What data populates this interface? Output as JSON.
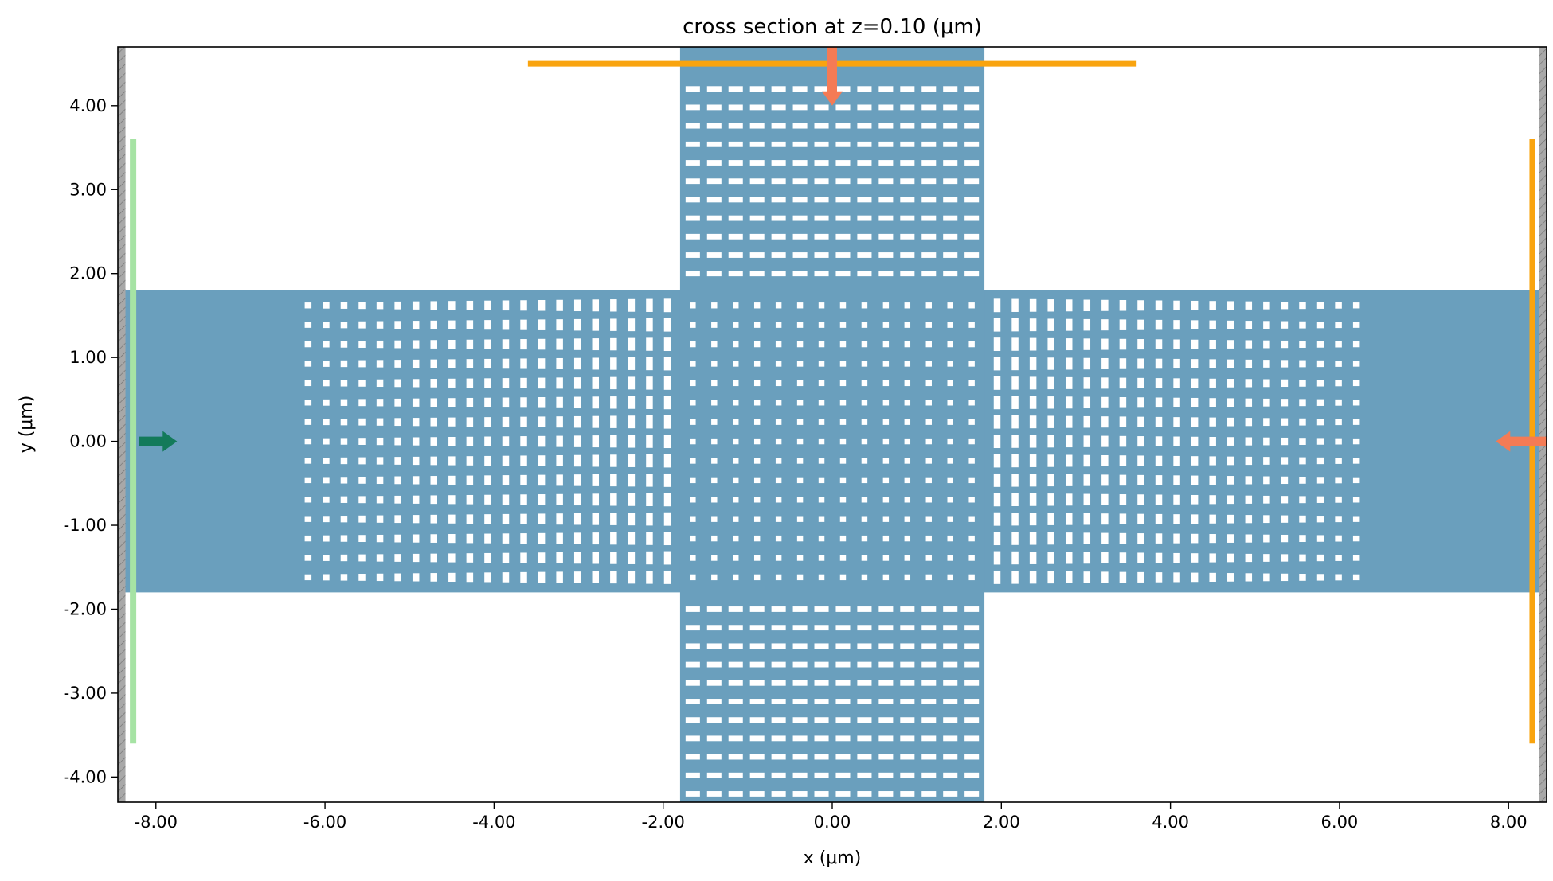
{
  "chart_data": {
    "type": "structure-cross-section",
    "title": "cross section at z=0.10 (μm)",
    "xlabel": "x (μm)",
    "ylabel": "y (μm)",
    "xlim": [
      -8.45,
      8.45
    ],
    "ylim": [
      -4.3,
      4.7
    ],
    "xticks": [
      {
        "value": -8,
        "label": "-8.00"
      },
      {
        "value": -6,
        "label": "-6.00"
      },
      {
        "value": -4,
        "label": "-4.00"
      },
      {
        "value": -2,
        "label": "-2.00"
      },
      {
        "value": 0,
        "label": "0.00"
      },
      {
        "value": 2,
        "label": "2.00"
      },
      {
        "value": 4,
        "label": "4.00"
      },
      {
        "value": 6,
        "label": "6.00"
      },
      {
        "value": 8,
        "label": "8.00"
      }
    ],
    "yticks": [
      {
        "value": -4,
        "label": "-4.00"
      },
      {
        "value": -3,
        "label": "-3.00"
      },
      {
        "value": -2,
        "label": "-2.00"
      },
      {
        "value": -1,
        "label": "-1.00"
      },
      {
        "value": 0,
        "label": "0.00"
      },
      {
        "value": 1,
        "label": "1.00"
      },
      {
        "value": 2,
        "label": "2.00"
      },
      {
        "value": 3,
        "label": "3.00"
      },
      {
        "value": 4,
        "label": "4.00"
      }
    ],
    "waveguides": [
      {
        "name": "horizontal",
        "x": [
          -8.45,
          8.45
        ],
        "y": [
          -1.8,
          1.8
        ],
        "color": "#6a9fbd"
      },
      {
        "name": "vertical",
        "x": [
          -1.8,
          1.8
        ],
        "y": [
          -4.3,
          4.7
        ],
        "color": "#6a9fbd"
      }
    ],
    "holes": {
      "color": "#ffffff",
      "left_arm": {
        "x_start": -6.2,
        "x_end": -1.95,
        "count": 21,
        "y_start": -1.62,
        "y_end": 1.62,
        "rows": 15,
        "width": 0.08,
        "height_start": 0.07,
        "height_end": 0.16
      },
      "right_arm": {
        "x_start": 1.95,
        "x_end": 6.2,
        "count": 21,
        "y_start": -1.62,
        "y_end": 1.62,
        "rows": 15,
        "width": 0.08,
        "height_start": 0.16,
        "height_end": 0.07
      },
      "center": {
        "x_start": -1.65,
        "x_end": 1.65,
        "count": 14,
        "y_start": -1.62,
        "y_end": 1.62,
        "rows": 15,
        "width": 0.07,
        "height": 0.07
      },
      "top_arm": {
        "x_start": -1.65,
        "x_end": 1.65,
        "count": 14,
        "y_start": 2.0,
        "y_end": 4.2,
        "rows": 11,
        "width": 0.17,
        "height": 0.065
      },
      "bottom_arm": {
        "x_start": -1.65,
        "x_end": 1.65,
        "count": 14,
        "y_start": -4.2,
        "y_end": -2.0,
        "rows": 11,
        "width": 0.17,
        "height": 0.065
      }
    },
    "pml_boundaries": {
      "color": "#a8a8a8",
      "left_x": [
        -8.45,
        -8.36
      ],
      "right_x": [
        8.36,
        8.45
      ]
    },
    "source": {
      "x": -8.27,
      "y": [
        -3.6,
        3.6
      ],
      "color": "#a6e3a4",
      "arrow": {
        "from": -8.2,
        "to": -7.75,
        "y": 0,
        "color": "#137a5a"
      }
    },
    "monitors": [
      {
        "name": "top",
        "orientation": "horizontal",
        "y": 4.5,
        "x": [
          -3.6,
          3.6
        ],
        "color": "#f9a40f"
      },
      {
        "name": "right",
        "orientation": "vertical",
        "x": 8.28,
        "y": [
          -3.6,
          3.6
        ],
        "color": "#f9a40f"
      }
    ],
    "monitor_arrows": [
      {
        "name": "top-arrow",
        "x": 0,
        "y_from": 4.75,
        "y_to": 4.0,
        "color": "#f47b55"
      },
      {
        "name": "right-arrow",
        "y": 0,
        "x_from": 8.45,
        "x_to": 7.85,
        "color": "#f47b55"
      }
    ]
  }
}
